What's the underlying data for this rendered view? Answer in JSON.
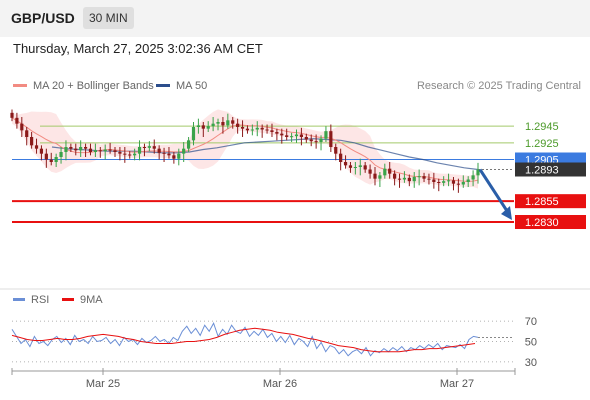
{
  "header": {
    "symbol": "GBP/USD",
    "timeframe": "30 MIN"
  },
  "datetime": "Thursday, March 27, 2025 3:02:36 AM CET",
  "legend": {
    "bb_label": "MA 20 + Bollinger Bands",
    "ma50_label": "MA 50",
    "credit": "Research © 2025 Trading Central",
    "rsi_label": "RSI",
    "ma9_label": "9MA"
  },
  "colors": {
    "bb": "#f28b82",
    "bb_fill": "#fde2e2",
    "ma50": "#2c4e8c",
    "green_line": "#a3c96a",
    "green_text": "#4c9a2a",
    "blue_level": "#3b7be0",
    "red_level": "#e81010",
    "candle_up": "#3aa34a",
    "candle_down": "#8b1a1a",
    "rsi": "#6b8fd6",
    "rsi_ma": "#e81010",
    "arrow": "#2a5ea8"
  },
  "chart_data": [
    {
      "type": "candlestick",
      "x_ticks": [
        "Mar 25",
        "Mar 26",
        "Mar 27"
      ],
      "ylim": [
        1.2818,
        1.2962
      ],
      "levels": [
        {
          "value": 1.2945,
          "label": "1.2945",
          "kind": "resistance"
        },
        {
          "value": 1.2925,
          "label": "1.2925",
          "kind": "resistance"
        },
        {
          "value": 1.2905,
          "label": "1.2905",
          "kind": "pivot"
        },
        {
          "value": 1.2893,
          "label": "1.2893",
          "kind": "last_price"
        },
        {
          "value": 1.2855,
          "label": "1.2855",
          "kind": "support"
        },
        {
          "value": 1.283,
          "label": "1.2830",
          "kind": "support"
        }
      ],
      "projection": {
        "from": 1.2893,
        "to": 1.283,
        "direction": "down"
      },
      "close": [
        1.2955,
        1.2948,
        1.294,
        1.2932,
        1.2922,
        1.2918,
        1.2912,
        1.2905,
        1.2902,
        1.2908,
        1.2914,
        1.292,
        1.2918,
        1.2916,
        1.292,
        1.2918,
        1.2914,
        1.2916,
        1.2915,
        1.2917,
        1.2916,
        1.2914,
        1.2912,
        1.2911,
        1.291,
        1.2912,
        1.292,
        1.2919,
        1.2921,
        1.2918,
        1.2913,
        1.2912,
        1.291,
        1.2906,
        1.2912,
        1.2918,
        1.2928,
        1.2944,
        1.2946,
        1.2942,
        1.2945,
        1.2948,
        1.295,
        1.2946,
        1.2952,
        1.2948,
        1.2944,
        1.2942,
        1.294,
        1.2941,
        1.2943,
        1.2941,
        1.294,
        1.2938,
        1.2936,
        1.2934,
        1.2932,
        1.2933,
        1.2935,
        1.2932,
        1.2929,
        1.2927,
        1.2926,
        1.293,
        1.2939,
        1.292,
        1.2912,
        1.2902,
        1.2898,
        1.2895,
        1.2896,
        1.2898,
        1.2893,
        1.2888,
        1.2882,
        1.2886,
        1.2894,
        1.2888,
        1.2882,
        1.2881,
        1.2883,
        1.2879,
        1.2884,
        1.2885,
        1.2882,
        1.2881,
        1.2878,
        1.2877,
        1.2879,
        1.288,
        1.2876,
        1.2875,
        1.2878,
        1.2881,
        1.2886,
        1.2893
      ],
      "ma50": [
        1.292,
        1.2918,
        1.2917,
        1.2916,
        1.2915,
        1.2915,
        1.2915,
        1.2914,
        1.2913,
        1.2913,
        1.2914,
        1.2917,
        1.2919,
        1.2922,
        1.2925,
        1.2926,
        1.2927,
        1.2928,
        1.2929,
        1.293,
        1.2929,
        1.2928,
        1.2925,
        1.292,
        1.2916,
        1.2912,
        1.2908,
        1.2905,
        1.2901,
        1.2898,
        1.2895,
        1.2893
      ]
    },
    {
      "type": "line",
      "name": "RSI",
      "ylim": [
        22,
        78
      ],
      "y_ticks": [
        70,
        50,
        30
      ],
      "rsi": [
        62,
        55,
        48,
        52,
        45,
        55,
        48,
        50,
        46,
        52,
        55,
        49,
        53,
        47,
        56,
        50,
        52,
        48,
        55,
        50,
        51,
        54,
        48,
        52,
        46,
        54,
        50,
        52,
        47,
        53,
        49,
        51,
        55,
        50,
        52,
        48,
        54,
        51,
        60,
        65,
        58,
        63,
        56,
        66,
        60,
        68,
        55,
        62,
        57,
        66,
        60,
        58,
        64,
        55,
        60,
        56,
        62,
        54,
        58,
        50,
        55,
        49,
        56,
        47,
        53,
        50,
        45,
        55,
        43,
        49,
        40,
        46,
        44,
        38,
        42,
        36,
        40,
        42,
        38,
        44,
        36,
        41,
        39,
        43,
        40,
        44,
        41,
        45,
        40,
        44,
        42,
        46,
        43,
        47,
        44,
        48,
        42,
        46,
        45,
        44,
        47,
        43,
        52,
        55,
        54
      ],
      "rsi_ma": [
        56,
        54,
        52,
        51,
        51,
        52,
        53,
        52,
        52,
        53,
        55,
        56,
        57,
        56,
        55,
        53,
        52,
        50,
        49,
        48,
        48,
        48,
        49,
        50,
        50,
        51,
        52,
        54,
        57,
        59,
        61,
        62,
        63,
        62,
        61,
        59,
        58,
        57,
        55,
        53,
        52,
        50,
        48,
        46,
        45,
        44,
        42,
        41,
        40,
        40,
        40,
        40,
        41,
        42,
        42,
        43,
        43,
        44,
        45,
        46,
        47,
        48
      ]
    }
  ]
}
